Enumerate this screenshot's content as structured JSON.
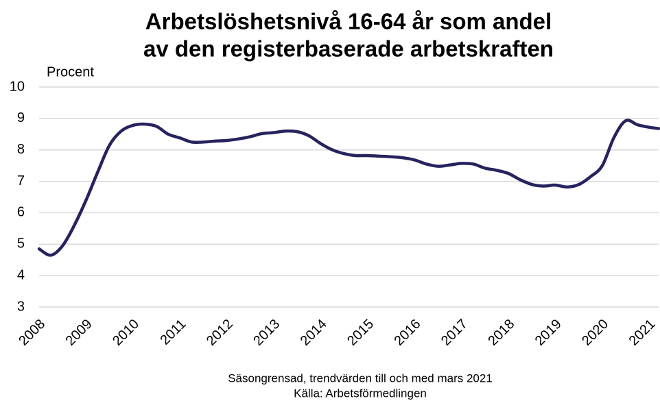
{
  "chart_data": {
    "type": "line",
    "title": [
      "Arbetslöshetsnivå 16-64 år som andel",
      "av den registerbaserade arbetskraften"
    ],
    "y_label": "Procent",
    "footnote": [
      "Säsongrensad, trendvärden till och med mars 2021",
      "Källa: Arbetsförmedlingen"
    ],
    "x": [
      2008.0,
      2008.25,
      2008.5,
      2008.75,
      2009.0,
      2009.25,
      2009.5,
      2009.75,
      2010.0,
      2010.25,
      2010.5,
      2010.75,
      2011.0,
      2011.25,
      2011.5,
      2011.75,
      2012.0,
      2012.25,
      2012.5,
      2012.75,
      2013.0,
      2013.25,
      2013.5,
      2013.75,
      2014.0,
      2014.25,
      2014.5,
      2014.75,
      2015.0,
      2015.25,
      2015.5,
      2015.75,
      2016.0,
      2016.25,
      2016.5,
      2016.75,
      2017.0,
      2017.25,
      2017.5,
      2017.75,
      2018.0,
      2018.25,
      2018.5,
      2018.75,
      2019.0,
      2019.25,
      2019.5,
      2019.75,
      2020.0,
      2020.25,
      2020.5,
      2020.75,
      2021.0,
      2021.2
    ],
    "series": [
      {
        "name": "Arbetslöshetsnivå",
        "color": "#27235e",
        "values": [
          4.85,
          4.65,
          4.95,
          5.6,
          6.4,
          7.3,
          8.15,
          8.6,
          8.78,
          8.82,
          8.75,
          8.5,
          8.38,
          8.25,
          8.25,
          8.28,
          8.3,
          8.35,
          8.42,
          8.52,
          8.55,
          8.6,
          8.58,
          8.45,
          8.2,
          8.0,
          7.88,
          7.82,
          7.82,
          7.8,
          7.78,
          7.75,
          7.68,
          7.55,
          7.48,
          7.52,
          7.57,
          7.55,
          7.42,
          7.35,
          7.25,
          7.05,
          6.9,
          6.85,
          6.88,
          6.82,
          6.9,
          7.15,
          7.5,
          8.4,
          8.93,
          8.8,
          8.72,
          8.68
        ]
      }
    ],
    "xlim": [
      2008,
      2021.2
    ],
    "xticks": [
      2008,
      2009,
      2010,
      2011,
      2012,
      2013,
      2014,
      2015,
      2016,
      2017,
      2018,
      2019,
      2020,
      2021
    ],
    "ylim": [
      3,
      10
    ],
    "yticks": [
      3,
      4,
      5,
      6,
      7,
      8,
      9,
      10
    ],
    "grid": true
  }
}
